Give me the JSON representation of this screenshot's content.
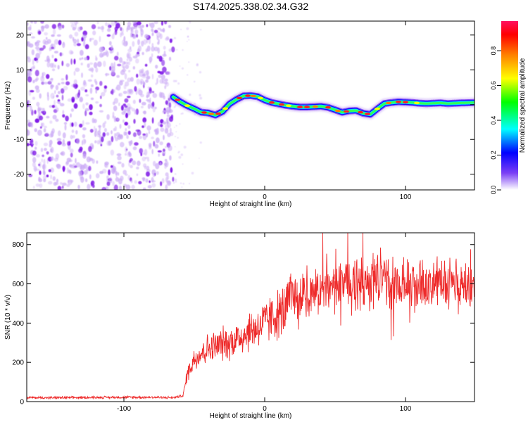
{
  "title": "S174.2025.338.02.34.G32",
  "colors": {
    "snr_line": "#ee2b2b",
    "noise_purple": "#7a10e6",
    "noise_light": "#c9a8f5"
  },
  "chart_data": [
    {
      "type": "heatmap",
      "name": "spectrogram",
      "xlabel": "Height of straight line (km)",
      "ylabel": "Frequency (Hz)",
      "xlim": [
        -169,
        149
      ],
      "ylim": [
        -24.5,
        24
      ],
      "x_ticks": [
        -100,
        0,
        100
      ],
      "y_ticks": [
        -20,
        -10,
        0,
        10,
        20
      ],
      "noise_region_x": [
        -169,
        -65
      ],
      "signal_start_x": -65,
      "trace": {
        "x": [
          -65,
          -60,
          -55,
          -50,
          -45,
          -40,
          -35,
          -30,
          -25,
          -20,
          -15,
          -10,
          -5,
          0,
          5,
          10,
          15,
          20,
          25,
          30,
          35,
          40,
          45,
          50,
          55,
          60,
          65,
          70,
          75,
          80,
          85,
          90,
          95,
          100,
          105,
          110,
          115,
          120,
          125,
          130,
          135,
          140,
          149
        ],
        "y": [
          2.2,
          0.8,
          -0.3,
          -1.2,
          -2.2,
          -2.4,
          -3.0,
          -2.0,
          0.2,
          1.5,
          2.5,
          2.6,
          2.3,
          1.3,
          0.6,
          0.2,
          -0.2,
          -0.5,
          -0.7,
          -0.7,
          -0.6,
          -0.5,
          -0.8,
          -1.5,
          -2.2,
          -1.8,
          -1.7,
          -2.5,
          -2.8,
          -1.2,
          0.3,
          0.6,
          0.8,
          0.7,
          0.6,
          0.4,
          0.3,
          0.4,
          0.5,
          0.3,
          0.4,
          0.5,
          0.6
        ]
      },
      "colorbar": {
        "label": "Normalized spectral amplitude",
        "ticks": [
          "0.0",
          "0.2",
          "0.4",
          "0.6",
          "0.8"
        ],
        "range": [
          0,
          0.97
        ],
        "colors": [
          "#ffffff",
          "#7b3ff5",
          "#0000ff",
          "#00ffff",
          "#00ff00",
          "#ffff00",
          "#ff8000",
          "#ff0000",
          "#ff1060"
        ]
      }
    },
    {
      "type": "line",
      "name": "snr",
      "xlabel": "Height of straight line (km)",
      "ylabel": "SNR (10 * v/v)",
      "xlim": [
        -169,
        149
      ],
      "ylim": [
        0,
        860
      ],
      "x_ticks": [
        -100,
        0,
        100
      ],
      "y_ticks": [
        0,
        200,
        400,
        600,
        800
      ],
      "series": [
        {
          "name": "SNR",
          "color": "#ee2b2b",
          "x": [
            -169,
            -140,
            -110,
            -80,
            -65,
            -58,
            -55,
            -50,
            -45,
            -40,
            -35,
            -30,
            -25,
            -20,
            -15,
            -10,
            -5,
            0,
            5,
            10,
            15,
            18,
            25,
            35,
            45,
            55,
            65,
            75,
            85,
            95,
            105,
            115,
            125,
            135,
            149
          ],
          "y": [
            20,
            20,
            22,
            22,
            20,
            30,
            140,
            220,
            250,
            270,
            280,
            295,
            300,
            320,
            340,
            365,
            380,
            400,
            430,
            445,
            470,
            520,
            540,
            560,
            570,
            580,
            590,
            600,
            620,
            590,
            600,
            580,
            590,
            585,
            590
          ]
        }
      ]
    }
  ]
}
